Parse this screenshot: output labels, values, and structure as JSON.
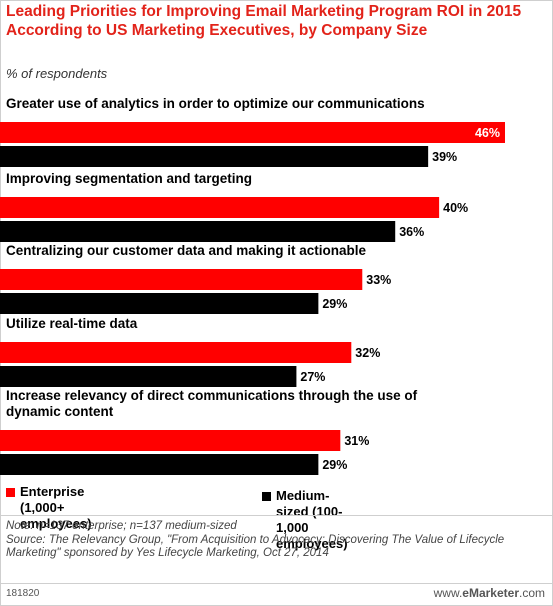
{
  "header": {
    "title": "Leading Priorities for Improving Email Marketing Program ROI in 2015 According to US Marketing Executives, by Company Size",
    "subtitle": "% of respondents"
  },
  "colors": {
    "enterprise": "#ff0000",
    "medium": "#000000",
    "title": "#e2231a"
  },
  "chart_data": {
    "type": "bar",
    "orientation": "horizontal",
    "categories": [
      "Greater use of analytics in order to optimize our communications",
      "Improving segmentation and targeting",
      "Centralizing our customer data and making it actionable",
      "Utilize real-time data",
      "Increase relevancy of direct communications through the use of dynamic content"
    ],
    "series": [
      {
        "name": "Enterprise (1,000+ employees)",
        "values": [
          46,
          40,
          33,
          32,
          31
        ],
        "labels": [
          "46%",
          "40%",
          "33%",
          "32%",
          "31%"
        ]
      },
      {
        "name": "Medium-sized (100-1,000 employees)",
        "values": [
          39,
          36,
          29,
          27,
          29
        ],
        "labels": [
          "39%",
          "36%",
          "29%",
          "27%",
          "29%"
        ]
      }
    ],
    "xlim": [
      0,
      46
    ]
  },
  "legend": {
    "enterprise_line1": "Enterprise",
    "enterprise_line2": "(1,000+ employees)",
    "medium": "Medium-sized (100-1,000 employees)"
  },
  "notes": {
    "note": "Note: n=137 enterprise; n=137 medium-sized",
    "source": "Source: The Relevancy Group, \"From Acquisition to Advocacy: Discovering The Value of Lifecycle Marketing\" sponsored by Yes Lifecycle Marketing, Oct 27, 2014"
  },
  "footer": {
    "id": "181820",
    "brand_prefix": "www.",
    "brand_name": "eMarketer",
    "brand_suffix": ".com"
  }
}
